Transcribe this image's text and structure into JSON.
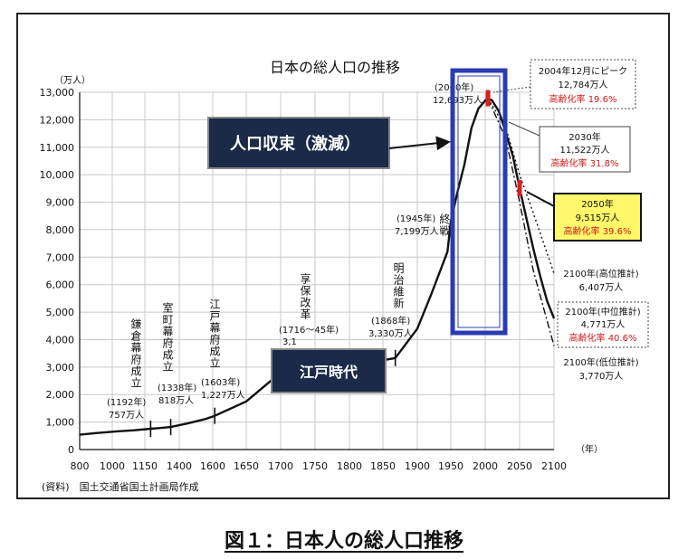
{
  "caption": "図１：日本人の総人口推移",
  "chart_data": {
    "type": "line",
    "title": "日本の総人口の推移",
    "y_unit": "（万人）",
    "x_unit": "（年）",
    "source": "(資料)　国土交通省国土計画局作成",
    "xlim": [
      800,
      2100
    ],
    "ylim": [
      0,
      13000
    ],
    "x_ticks": [
      800,
      1000,
      1150,
      1400,
      1600,
      1650,
      1700,
      1750,
      1800,
      1850,
      1900,
      1950,
      2000,
      2050,
      2100
    ],
    "y_ticks": [
      0,
      1000,
      2000,
      3000,
      4000,
      5000,
      6000,
      7000,
      8000,
      9000,
      10000,
      11000,
      12000,
      13000
    ],
    "y_tick_labels": [
      "0",
      "1,000",
      "2,000",
      "3,000",
      "4,000",
      "5,000",
      "6,000",
      "7,000",
      "8,000",
      "9,000",
      "10,000",
      "11,000",
      "12,000",
      "13,000"
    ],
    "series": [
      {
        "style": "solid",
        "x": [
          800,
          900,
          1000,
          1100,
          1192,
          1250,
          1338,
          1450,
          1550,
          1603,
          1650,
          1700,
          1716,
          1750,
          1800,
          1850,
          1868,
          1900,
          1920,
          1945,
          1950,
          1960,
          1970,
          1980,
          1990,
          2000,
          2004,
          2010,
          2020,
          2030,
          2040,
          2050,
          2060,
          2070,
          2080,
          2090,
          2100
        ],
        "y": [
          540,
          600,
          650,
          700,
          757,
          780,
          818,
          950,
          1100,
          1227,
          1750,
          2800,
          3128,
          3200,
          3100,
          3250,
          3330,
          4400,
          5600,
          7199,
          8300,
          9400,
          10400,
          11700,
          12400,
          12700,
          12784,
          12700,
          12300,
          11522,
          10700,
          9515,
          8400,
          7300,
          6300,
          5400,
          4771
        ]
      },
      {
        "style": "dotted",
        "x": [
          2004,
          2030,
          2050,
          2070,
          2100
        ],
        "y": [
          12784,
          11700,
          10000,
          8600,
          6407
        ]
      },
      {
        "style": "dash-dot",
        "x": [
          2004,
          2030,
          2050,
          2070,
          2100
        ],
        "y": [
          12784,
          11300,
          9000,
          6500,
          3770
        ]
      }
    ],
    "markers": [
      {
        "x": 1192,
        "y": 757
      },
      {
        "x": 1338,
        "y": 818
      },
      {
        "x": 1603,
        "y": 1227
      },
      {
        "x": 1868,
        "y": 3330
      }
    ],
    "annotations": {
      "kamakura": {
        "label": "鎌倉幕府成立",
        "value": "(1192年)",
        "value2": "757万人"
      },
      "muromachi": {
        "label": "室町幕府成立",
        "value": "(1338年)",
        "value2": "818万人"
      },
      "edo": {
        "label": "江戸幕府成立",
        "value": "(1603年)",
        "value2": "1,227万人"
      },
      "kyoho": {
        "label": "享保改革",
        "value": "(1716～45年)",
        "value2": "3,1"
      },
      "meiji": {
        "label": "明治維新",
        "value": "(1868年)",
        "value2": "3,330万人"
      },
      "y1945": {
        "label": "終戦",
        "value": "(1945年)",
        "value2": "7,199万人"
      },
      "y2000": {
        "value": "(2000年)",
        "value2": "12,693万人"
      }
    },
    "callouts": [
      {
        "line1": "2004年12月にピーク",
        "line2": "12,784万人",
        "line3": "高齢化率 19.6%"
      },
      {
        "line1": "2030年",
        "line2": "11,522万人",
        "line3": "高齢化率 31.8%"
      },
      {
        "line1": "2050年",
        "line2": "9,515万人",
        "line3": "高齢化率 39.6%"
      }
    ],
    "side_labels": [
      {
        "line1": "2100年(高位推計)",
        "line2": "6,407万人"
      },
      {
        "line1": "2100年(中位推計)",
        "line2": "4,771万人",
        "line3": "高齢化率 40.6%"
      },
      {
        "line1": "2100年(低位推計)",
        "line2": "3,770万人"
      }
    ],
    "banners": {
      "decline": "人口収束（激減）",
      "edo_period": "江戸時代"
    },
    "colors": {
      "line": "#111111",
      "red_text": "#d01818",
      "banner_bg": "#1a2a48",
      "highlight_box": "#2a3cb0",
      "callout_2050_bg": "#fff86a",
      "marker_red": "#d82020"
    }
  }
}
